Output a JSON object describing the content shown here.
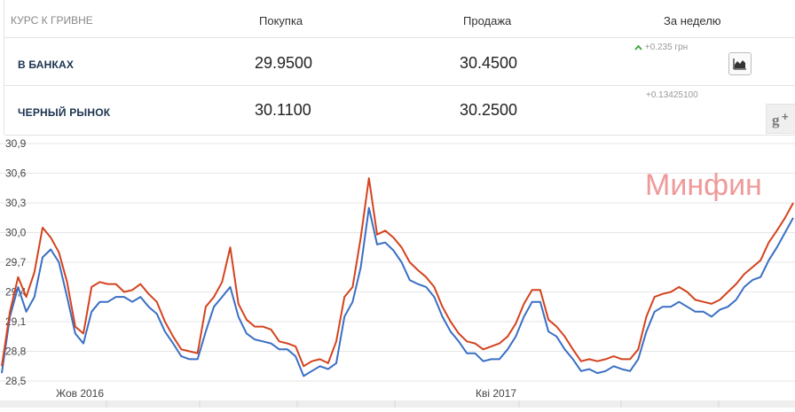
{
  "table": {
    "headers": {
      "label": "КУРС К ГРИВНЕ",
      "buy": "Покупка",
      "sell": "Продажа",
      "week": "За неделю"
    },
    "rows": [
      {
        "label": "В БАНКАХ",
        "buy": "29.9500",
        "sell": "30.4500",
        "change": "+0.235 грн",
        "trend": "up"
      },
      {
        "label": "ЧЕРНЫЙ РЫНОК",
        "buy": "30.1100",
        "sell": "30.2500",
        "change": "+0.13425100"
      }
    ]
  },
  "watermark": "Минфин",
  "icons": {
    "trend": "up-arrow-icon",
    "chart": "area-chart-icon",
    "share": "google-plus-icon"
  },
  "colors": {
    "buy_series": "#3a6fc4",
    "sell_series": "#d4431e",
    "watermark": "#ef9a9a"
  },
  "chart_data": {
    "type": "line",
    "ylim": [
      28.5,
      30.9
    ],
    "yticks": [
      "30,9",
      "30,6",
      "30,3",
      "30,0",
      "29,7",
      "29,4",
      "29,1",
      "28,8",
      "28,5"
    ],
    "xtick_labels": [
      "Жов 2016",
      "Кві 2017"
    ],
    "series": [
      {
        "values": [
          28.58,
          29.15,
          29.45,
          29.2,
          29.35,
          29.75,
          29.83,
          29.7,
          29.35,
          28.98,
          28.88,
          29.2,
          29.3,
          29.3,
          29.35,
          29.35,
          29.3,
          29.35,
          29.25,
          29.18,
          29.0,
          28.88,
          28.75,
          28.72,
          28.72,
          29.0,
          29.25,
          29.35,
          29.45,
          29.15,
          28.98,
          28.92,
          28.9,
          28.88,
          28.82,
          28.82,
          28.75,
          28.55,
          28.6,
          28.65,
          28.62,
          28.68,
          29.15,
          29.3,
          29.65,
          30.25,
          29.88,
          29.9,
          29.82,
          29.7,
          29.52,
          29.48,
          29.45,
          29.35,
          29.15,
          29.0,
          28.9,
          28.78,
          28.78,
          28.7,
          28.72,
          28.72,
          28.82,
          28.95,
          29.15,
          29.3,
          29.3,
          29.0,
          28.95,
          28.82,
          28.72,
          28.6,
          28.62,
          28.58,
          28.6,
          28.65,
          28.62,
          28.6,
          28.72,
          29.0,
          29.2,
          29.25,
          29.25,
          29.3,
          29.25,
          29.2,
          29.2,
          29.15,
          29.22,
          29.25,
          29.32,
          29.45,
          29.52,
          29.55,
          29.72,
          29.85,
          30.0,
          30.15
        ]
      },
      {
        "values": [
          28.65,
          29.2,
          29.55,
          29.35,
          29.6,
          30.05,
          29.95,
          29.8,
          29.5,
          29.05,
          28.98,
          29.45,
          29.5,
          29.48,
          29.48,
          29.4,
          29.42,
          29.48,
          29.38,
          29.3,
          29.1,
          28.95,
          28.82,
          28.8,
          28.78,
          29.25,
          29.35,
          29.5,
          29.85,
          29.28,
          29.12,
          29.05,
          29.05,
          29.02,
          28.9,
          28.88,
          28.85,
          28.65,
          28.7,
          28.72,
          28.68,
          28.9,
          29.35,
          29.45,
          29.95,
          30.55,
          29.98,
          30.02,
          29.95,
          29.85,
          29.7,
          29.62,
          29.55,
          29.45,
          29.25,
          29.1,
          28.98,
          28.9,
          28.88,
          28.82,
          28.85,
          28.88,
          28.95,
          29.08,
          29.28,
          29.42,
          29.42,
          29.12,
          29.05,
          28.95,
          28.82,
          28.7,
          28.72,
          28.7,
          28.72,
          28.75,
          28.72,
          28.72,
          28.82,
          29.15,
          29.35,
          29.38,
          29.4,
          29.45,
          29.4,
          29.32,
          29.3,
          29.28,
          29.32,
          29.4,
          29.48,
          29.58,
          29.65,
          29.72,
          29.9,
          30.02,
          30.15,
          30.3
        ]
      }
    ]
  }
}
